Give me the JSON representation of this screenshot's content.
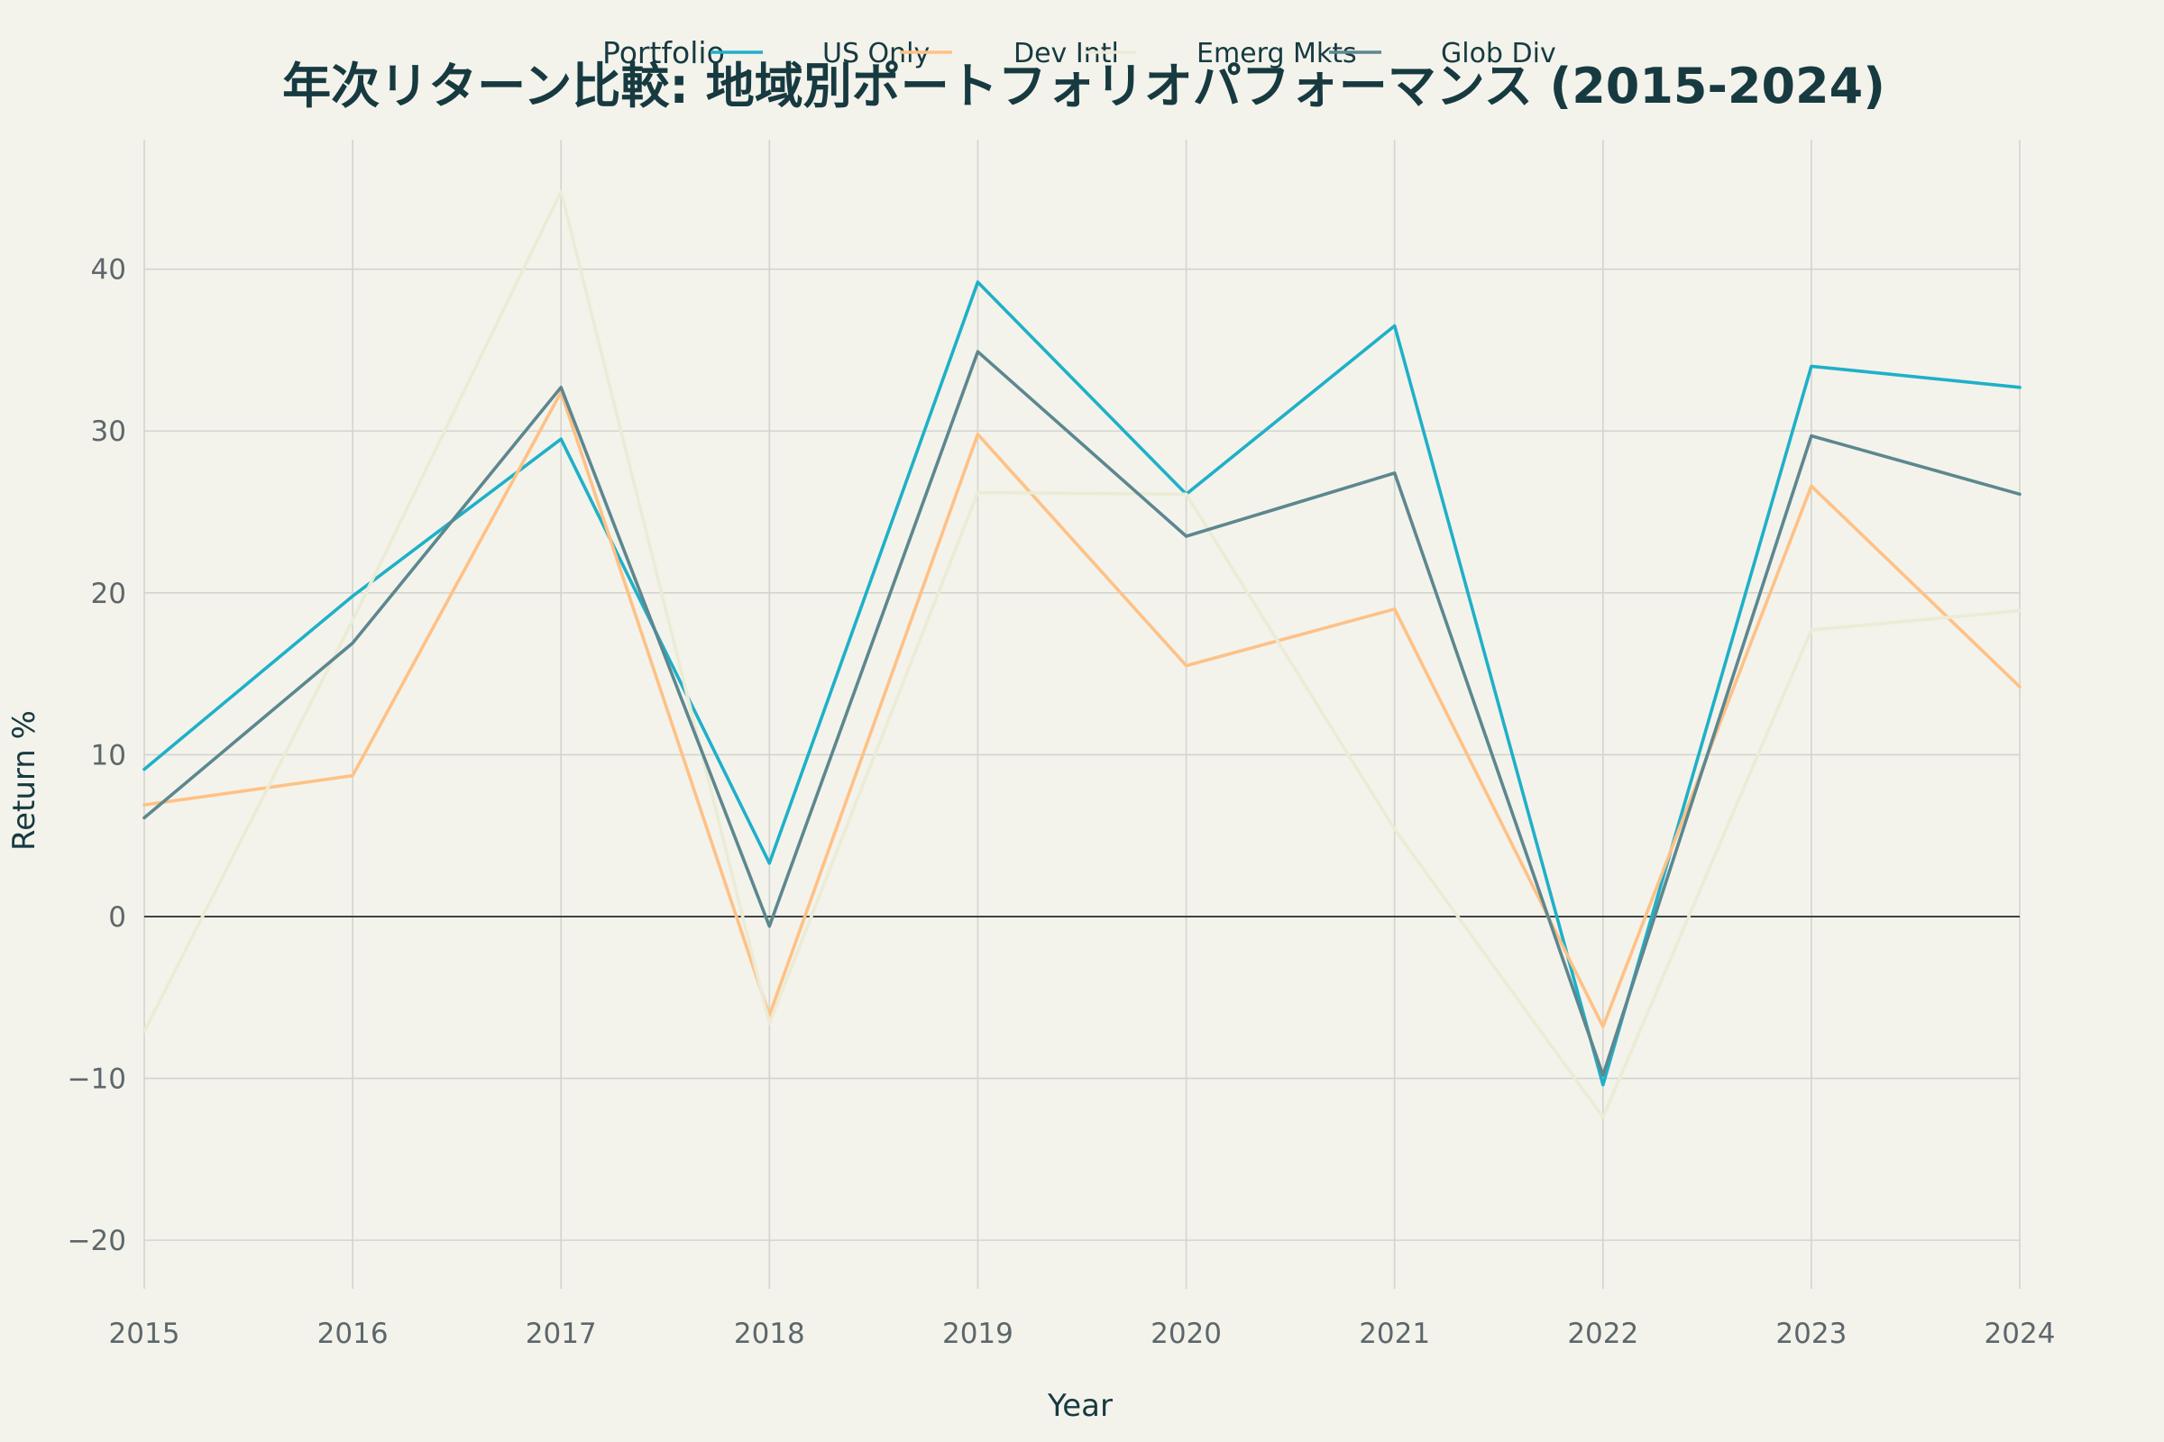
{
  "chart_data": {
    "type": "line",
    "title": "年次リターン比較: 地域別ポートフォリオパフォーマンス (2015-2024)",
    "xlabel": "Year",
    "ylabel": "Return %",
    "x": [
      2015,
      2016,
      2017,
      2018,
      2019,
      2020,
      2021,
      2022,
      2023,
      2024
    ],
    "x_tick_labels": [
      "2015",
      "2016",
      "2017",
      "2018",
      "2019",
      "2020",
      "2021",
      "2022",
      "2023",
      "2024"
    ],
    "xlim": [
      2015,
      2024
    ],
    "ylim": [
      -23,
      48
    ],
    "y_ticks": [
      -20,
      -10,
      0,
      10,
      20,
      30,
      40
    ],
    "y_tick_labels": [
      "−20",
      "−10",
      "0",
      "10",
      "20",
      "30",
      "40"
    ],
    "grid": true,
    "zero_line": true,
    "legend": {
      "title": "Portfolio",
      "placement": "top",
      "orientation": "horizontal"
    },
    "series": [
      {
        "name": "US Only",
        "color": "#1fb0c8",
        "values": [
          9.1,
          19.8,
          29.5,
          3.3,
          39.2,
          26.1,
          36.5,
          -10.4,
          34.0,
          32.7
        ]
      },
      {
        "name": "Dev Intl",
        "color": "#ffc185",
        "values": [
          6.9,
          8.7,
          32.4,
          -6.1,
          29.8,
          15.5,
          19.0,
          -6.8,
          26.6,
          14.2
        ]
      },
      {
        "name": "Emerg Mkts",
        "color": "#ecebd5",
        "values": [
          -7.1,
          18.3,
          44.8,
          -6.6,
          26.2,
          26.1,
          5.4,
          -12.4,
          17.7,
          18.9
        ]
      },
      {
        "name": "Glob Div",
        "color": "#5d878f",
        "values": [
          6.1,
          16.9,
          32.7,
          -0.6,
          34.9,
          23.5,
          27.4,
          -9.8,
          29.7,
          26.1
        ]
      }
    ]
  },
  "colors": {
    "background": "#f3f3ec",
    "grid": "#d3d4cf",
    "zero_line": "#3d4446",
    "title": "#173a40",
    "tick": "#5d676b"
  }
}
